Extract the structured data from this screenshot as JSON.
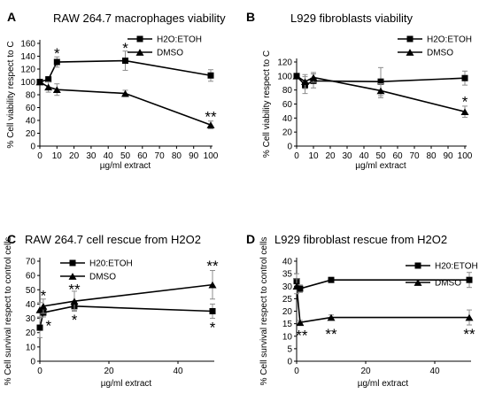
{
  "colors": {
    "ink": "#000000",
    "error": "#8c8c8c"
  },
  "chart_data": [
    {
      "type": "line",
      "panel_label": "A",
      "title": "RAW 264.7 macrophages viability",
      "xlabel": "µg/ml extract",
      "ylabel": "% Cell viability respect to C",
      "xlim": [
        0,
        100
      ],
      "ylim": [
        0,
        160
      ],
      "xticks": [
        0,
        10,
        20,
        30,
        40,
        50,
        60,
        70,
        80,
        90,
        100
      ],
      "yticks": [
        0,
        20,
        40,
        60,
        80,
        100,
        120,
        140,
        160
      ],
      "legend_position": "top-right",
      "series": [
        {
          "name": "H2O:ETOH",
          "marker": "square",
          "x": [
            0,
            5,
            10,
            50,
            100
          ],
          "y": [
            100,
            104,
            131,
            133,
            110
          ],
          "err": [
            0,
            4,
            8,
            15,
            9
          ]
        },
        {
          "name": "DMSO",
          "marker": "triangle",
          "x": [
            0,
            5,
            10,
            50,
            100
          ],
          "y": [
            100,
            92,
            88,
            82,
            33
          ],
          "err": [
            0,
            8,
            9,
            5,
            6
          ]
        }
      ],
      "annotations": [
        {
          "text": "*",
          "x": 10,
          "y": 145
        },
        {
          "text": "*",
          "x": 50,
          "y": 153
        },
        {
          "text": "**",
          "x": 100,
          "y": 46
        }
      ]
    },
    {
      "type": "line",
      "panel_label": "B",
      "title": "L929 fibroblasts viability",
      "xlabel": "µg/ml extract",
      "ylabel": "% Cell viability respect to C",
      "xlim": [
        0,
        100
      ],
      "ylim": [
        0,
        120
      ],
      "xticks": [
        0,
        10,
        20,
        30,
        40,
        50,
        60,
        70,
        80,
        90,
        100
      ],
      "yticks": [
        0,
        20,
        40,
        60,
        80,
        100,
        120
      ],
      "legend_position": "top-right",
      "series": [
        {
          "name": "H2O:ETOH",
          "marker": "square",
          "x": [
            0,
            5,
            10,
            50,
            100
          ],
          "y": [
            100,
            87,
            93,
            92,
            97
          ],
          "err": [
            0,
            12,
            10,
            20,
            10
          ]
        },
        {
          "name": "DMSO",
          "marker": "triangle",
          "x": [
            0,
            5,
            10,
            50,
            100
          ],
          "y": [
            100,
            92,
            98,
            79,
            49
          ],
          "err": [
            0,
            10,
            7,
            10,
            8
          ]
        }
      ],
      "annotations": [
        {
          "text": "*",
          "x": 100,
          "y": 64
        }
      ]
    },
    {
      "type": "line",
      "panel_label": "C",
      "title": "RAW 264.7 cell rescue from H2O2",
      "xlabel": "µg/ml extract",
      "ylabel": "% Cell survival respect to control cells",
      "xlim": [
        0,
        50
      ],
      "ylim": [
        0,
        70
      ],
      "xticks": [
        0,
        20,
        40
      ],
      "yticks": [
        0,
        10,
        20,
        30,
        40,
        50,
        60,
        70
      ],
      "legend_position": "top-left",
      "series": [
        {
          "name": "H20:ETOH",
          "marker": "square",
          "x": [
            0,
            1,
            10,
            50
          ],
          "y": [
            23.5,
            34,
            38.5,
            35
          ],
          "err": [
            7,
            3,
            3,
            5
          ]
        },
        {
          "name": "DMSO",
          "marker": "triangle",
          "x": [
            0,
            1,
            10,
            50
          ],
          "y": [
            36,
            38.5,
            42,
            53.5
          ],
          "err": [
            5,
            5,
            7,
            10
          ]
        }
      ],
      "annotations": [
        {
          "text": "*",
          "x": 1,
          "y": 46
        },
        {
          "text": "*",
          "x": 2.5,
          "y": 25
        },
        {
          "text": "**",
          "x": 10,
          "y": 50.5
        },
        {
          "text": "*",
          "x": 10,
          "y": 29
        },
        {
          "text": "**",
          "x": 50,
          "y": 67
        },
        {
          "text": "*",
          "x": 50,
          "y": 24
        }
      ]
    },
    {
      "type": "line",
      "panel_label": "D",
      "title": "L929 fibroblast rescue from H2O2",
      "xlabel": "µg/ml extract",
      "ylabel": "% Cell survival respect to control cells",
      "xlim": [
        0,
        50
      ],
      "ylim": [
        0,
        40
      ],
      "xticks": [
        0,
        20,
        40
      ],
      "yticks": [
        0,
        5,
        10,
        15,
        20,
        25,
        30,
        35,
        40
      ],
      "legend_position": "top-right",
      "series": [
        {
          "name": "H20:ETOH",
          "marker": "square",
          "x": [
            0,
            1,
            10,
            50
          ],
          "y": [
            32,
            29,
            32.5,
            32.5
          ],
          "err": [
            3,
            1.5,
            0.8,
            3
          ]
        },
        {
          "name": "DMSO",
          "marker": "triangle",
          "x": [
            0,
            1,
            10,
            50
          ],
          "y": [
            30,
            15.5,
            17.5,
            17.5
          ],
          "err": [
            3,
            0.8,
            1,
            3
          ]
        }
      ],
      "annotations": [
        {
          "text": "**",
          "x": 1.5,
          "y": 10.5
        },
        {
          "text": "**",
          "x": 10,
          "y": 11
        },
        {
          "text": "**",
          "x": 50,
          "y": 11
        }
      ]
    }
  ]
}
